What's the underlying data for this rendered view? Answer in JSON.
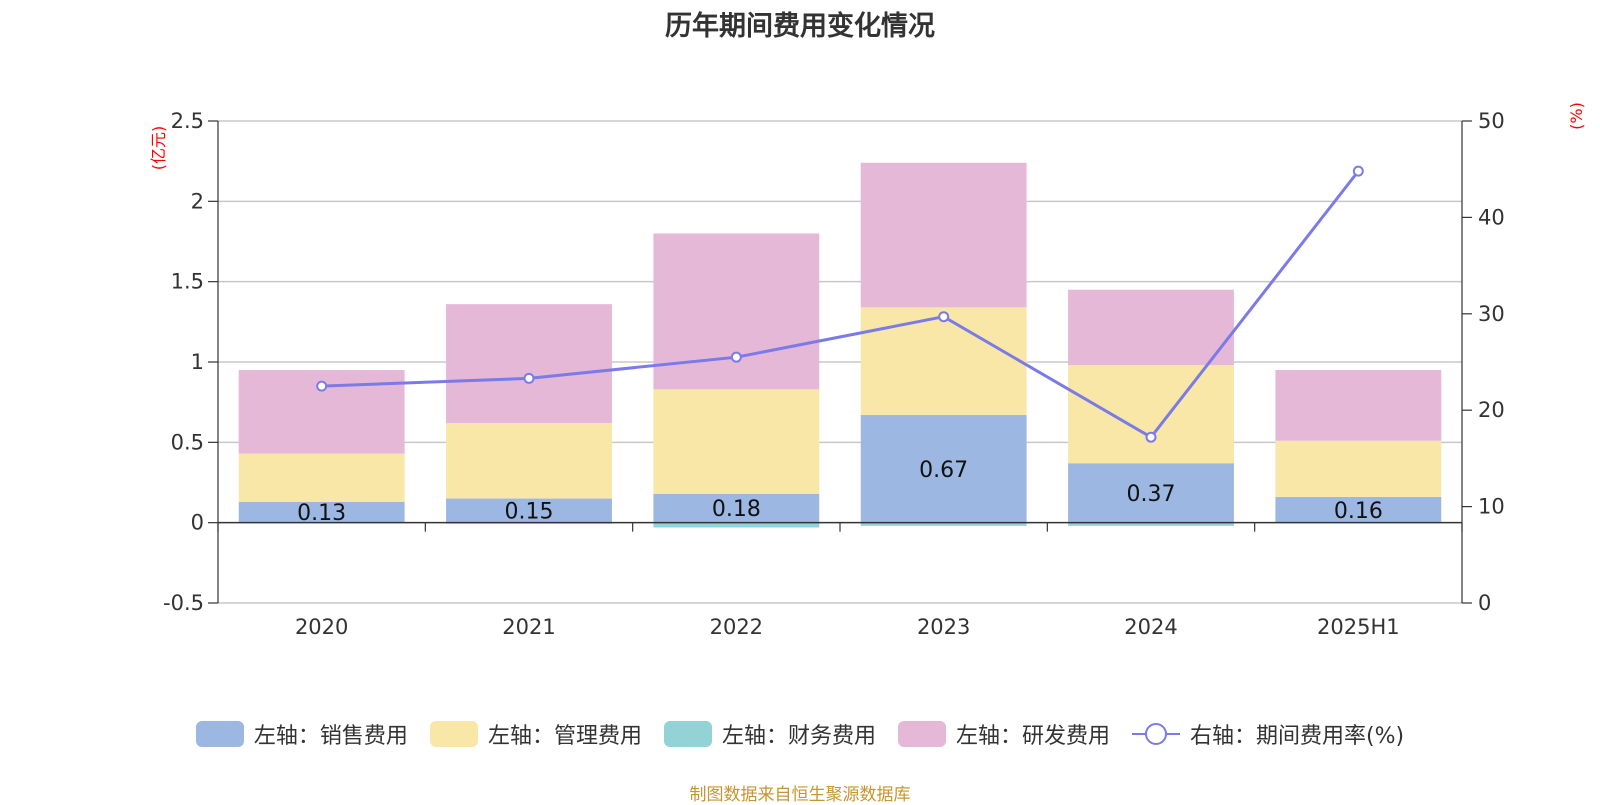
{
  "chart_data": {
    "type": "bar",
    "title": "历年期间费用变化情况",
    "categories": [
      "2020",
      "2021",
      "2022",
      "2023",
      "2024",
      "2025H1"
    ],
    "left_axis": {
      "unit": "(亿元)",
      "ylim": [
        -0.5,
        2.5
      ],
      "ticks": [
        -0.5,
        0,
        0.5,
        1,
        1.5,
        2,
        2.5
      ]
    },
    "right_axis": {
      "unit": "(%)",
      "ylim": [
        0,
        50
      ],
      "ticks": [
        0,
        10,
        20,
        30,
        40,
        50
      ]
    },
    "stacked": true,
    "series": [
      {
        "name": "左轴：销售费用",
        "axis": "left",
        "type": "bar",
        "color": "#9cb8e2",
        "values": [
          0.13,
          0.15,
          0.18,
          0.67,
          0.37,
          0.16
        ],
        "labels": [
          "0.13",
          "0.15",
          "0.18",
          "0.67",
          "0.37",
          "0.16"
        ]
      },
      {
        "name": "左轴：管理费用",
        "axis": "left",
        "type": "bar",
        "color": "#f8e7a7",
        "values": [
          0.3,
          0.47,
          0.65,
          0.67,
          0.61,
          0.35
        ]
      },
      {
        "name": "左轴：财务费用",
        "axis": "left",
        "type": "bar",
        "color": "#93d3d6",
        "values": [
          0.0,
          -0.005,
          -0.03,
          -0.02,
          -0.02,
          0.0
        ]
      },
      {
        "name": "左轴：研发费用",
        "axis": "left",
        "type": "bar",
        "color": "#e6b8d8",
        "values": [
          0.52,
          0.74,
          0.97,
          0.9,
          0.47,
          0.44
        ]
      },
      {
        "name": "右轴：期间费用率(%)",
        "axis": "right",
        "type": "line",
        "color": "#7b7be8",
        "values": [
          22.5,
          23.3,
          25.5,
          29.7,
          17.2,
          44.8
        ]
      }
    ],
    "grid": true,
    "legend_position": "bottom"
  },
  "source": "制图数据来自恒生聚源数据库"
}
